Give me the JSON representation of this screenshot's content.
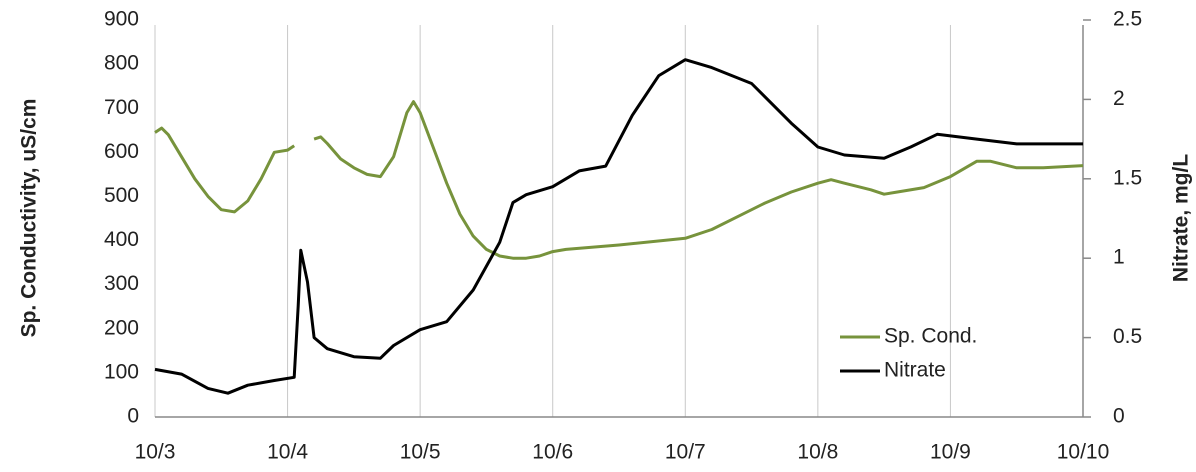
{
  "chart_data": {
    "type": "line",
    "y_label": "Sp. Conductivity, uS/cm",
    "y2_label": "Nitrate, mg/L",
    "xlim": [
      3,
      10
    ],
    "xticks": [
      {
        "value": 3,
        "label": "10/3"
      },
      {
        "value": 4,
        "label": "10/4"
      },
      {
        "value": 5,
        "label": "10/5"
      },
      {
        "value": 6,
        "label": "10/6"
      },
      {
        "value": 7,
        "label": "10/7"
      },
      {
        "value": 8,
        "label": "10/8"
      },
      {
        "value": 9,
        "label": "10/9"
      },
      {
        "value": 10,
        "label": "10/10"
      }
    ],
    "ylim": [
      0,
      900
    ],
    "yticks": [
      0,
      100,
      200,
      300,
      400,
      500,
      600,
      700,
      800,
      900
    ],
    "y2lim": [
      0,
      2.5
    ],
    "y2ticks": [
      0,
      0.5,
      1,
      1.5,
      2,
      2.5
    ],
    "grid": true,
    "legend": "lower right",
    "series": [
      {
        "name": "Sp. Cond.",
        "color": "#77933c",
        "x": [
          3.0,
          3.05,
          3.1,
          3.2,
          3.3,
          3.4,
          3.5,
          3.6,
          3.7,
          3.8,
          3.9,
          4.0,
          4.05,
          4.12,
          4.2,
          4.25,
          4.3,
          4.4,
          4.5,
          4.6,
          4.7,
          4.8,
          4.9,
          4.95,
          5.0,
          5.1,
          5.2,
          5.3,
          5.4,
          5.5,
          5.6,
          5.7,
          5.8,
          5.9,
          6.0,
          6.1,
          6.5,
          7.0,
          7.2,
          7.4,
          7.6,
          7.8,
          8.0,
          8.1,
          8.2,
          8.4,
          8.5,
          8.6,
          8.8,
          9.0,
          9.2,
          9.3,
          9.5,
          9.7,
          10.0
        ],
        "values": [
          645,
          655,
          640,
          590,
          540,
          500,
          470,
          465,
          490,
          540,
          600,
          605,
          615,
          null,
          630,
          635,
          620,
          585,
          565,
          550,
          545,
          590,
          690,
          715,
          690,
          610,
          530,
          460,
          410,
          380,
          365,
          360,
          360,
          365,
          375,
          380,
          390,
          405,
          425,
          455,
          485,
          510,
          530,
          538,
          530,
          515,
          505,
          510,
          520,
          545,
          580,
          580,
          565,
          565,
          570
        ]
      },
      {
        "name": "Nitrate",
        "color": "#000000",
        "axis": "y2",
        "x": [
          3.0,
          3.2,
          3.4,
          3.55,
          3.7,
          3.9,
          4.05,
          4.08,
          4.1,
          4.15,
          4.2,
          4.3,
          4.5,
          4.7,
          4.8,
          5.0,
          5.2,
          5.4,
          5.6,
          5.7,
          5.8,
          6.0,
          6.2,
          6.4,
          6.6,
          6.8,
          7.0,
          7.2,
          7.5,
          7.8,
          8.0,
          8.2,
          8.5,
          8.7,
          8.9,
          9.2,
          9.5,
          10.0
        ],
        "values": [
          0.3,
          0.27,
          0.18,
          0.15,
          0.2,
          0.23,
          0.25,
          0.7,
          1.05,
          0.85,
          0.5,
          0.43,
          0.38,
          0.37,
          0.45,
          0.55,
          0.6,
          0.8,
          1.1,
          1.35,
          1.4,
          1.45,
          1.55,
          1.58,
          1.9,
          2.15,
          2.25,
          2.2,
          2.1,
          1.85,
          1.7,
          1.65,
          1.63,
          1.7,
          1.78,
          1.75,
          1.72,
          1.72
        ]
      }
    ]
  }
}
